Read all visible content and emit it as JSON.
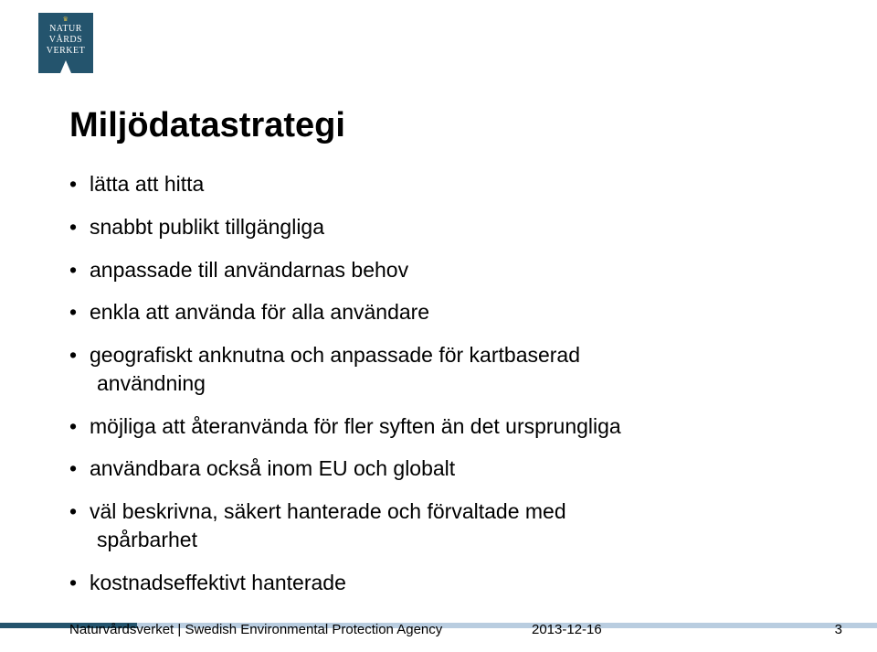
{
  "logo": {
    "line1": "NATUR",
    "line2": "VÅRDS",
    "line3": "VERKET"
  },
  "title": "Miljödatastrategi",
  "bullets": [
    {
      "text": "lätta att hitta"
    },
    {
      "text": "snabbt publikt tillgängliga"
    },
    {
      "text": "anpassade till användarnas behov"
    },
    {
      "text": "enkla att använda för alla användare"
    },
    {
      "text": "geografiskt anknutna och anpassade för kartbaserad",
      "sub": "användning"
    },
    {
      "text": "möjliga att återanvända för fler syften än det ursprungliga"
    },
    {
      "text": "användbara också inom EU och globalt"
    },
    {
      "text": "väl beskrivna, säkert hanterade och förvaltade med",
      "sub": "spårbarhet"
    },
    {
      "text": "kostnadseffektivt hanterade"
    }
  ],
  "footer": {
    "org": "Naturvårdsverket | Swedish Environmental Protection Agency",
    "date": "2013-12-16",
    "page": "3"
  },
  "colors": {
    "brand_dark": "#24546d",
    "bar_light": "#b9cde0",
    "crown": "#d4b94e"
  }
}
